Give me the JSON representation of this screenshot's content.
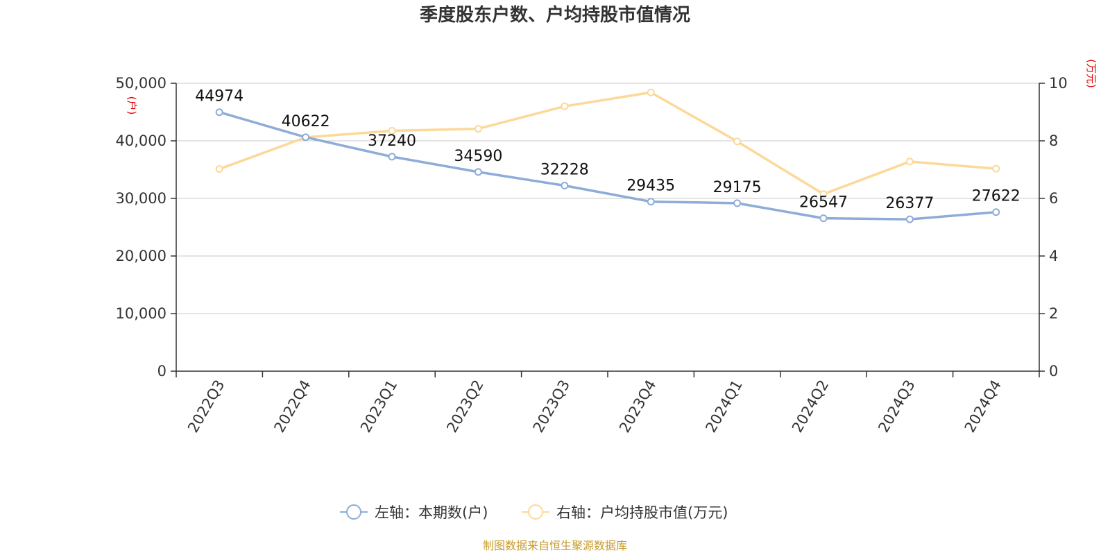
{
  "chart_data": {
    "type": "line",
    "title": "季度股东户数、户均持股市值情况",
    "categories": [
      "2022Q3",
      "2022Q4",
      "2023Q1",
      "2023Q2",
      "2023Q3",
      "2023Q4",
      "2024Q1",
      "2024Q2",
      "2024Q3",
      "2024Q4"
    ],
    "left_axis": {
      "unit": "(户)",
      "ylim": [
        0,
        50000
      ],
      "ticks": [
        "0",
        "10,000",
        "20,000",
        "30,000",
        "40,000",
        "50,000"
      ],
      "tick_values": [
        0,
        10000,
        20000,
        30000,
        40000,
        50000
      ]
    },
    "right_axis": {
      "unit": "(万元)",
      "ylim": [
        0,
        10
      ],
      "ticks": [
        "0",
        "2",
        "4",
        "6",
        "8",
        "10"
      ],
      "tick_values": [
        0,
        2,
        4,
        6,
        8,
        10
      ]
    },
    "series": [
      {
        "name": "左轴：本期数(户)",
        "axis": "left",
        "color": "#8eacd8",
        "values": [
          44974,
          40622,
          37240,
          34590,
          32228,
          29435,
          29175,
          26547,
          26377,
          27622
        ],
        "labels": [
          "44974",
          "40622",
          "37240",
          "34590",
          "32228",
          "29435",
          "29175",
          "26547",
          "26377",
          "27622"
        ]
      },
      {
        "name": "右轴：户均持股市值(万元)",
        "axis": "right",
        "color": "#fcd899",
        "values": [
          7.02,
          8.12,
          8.35,
          8.42,
          9.2,
          9.68,
          7.98,
          6.15,
          7.28,
          7.03
        ]
      }
    ],
    "grid": true,
    "legend_position": "bottom"
  },
  "source": "制图数据来自恒生聚源数据库"
}
